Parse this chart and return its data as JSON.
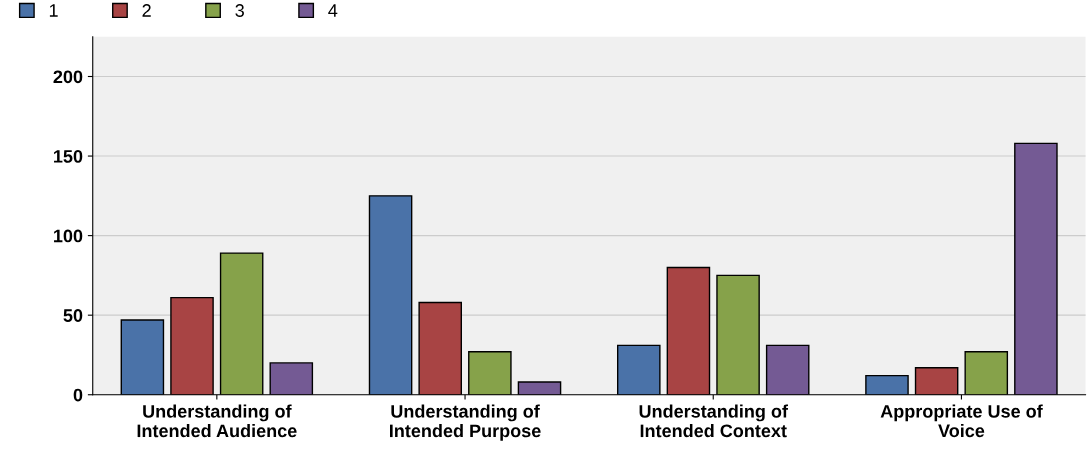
{
  "chart_data": {
    "type": "bar",
    "categories": [
      "Understanding of\nIntended Audience",
      "Understanding of\nIntended Purpose",
      "Understanding of\nIntended Context",
      "Appropriate Use of\nVoice"
    ],
    "series": [
      {
        "name": "1",
        "color": "#4a72a8",
        "values": [
          47,
          125,
          31,
          12
        ]
      },
      {
        "name": "2",
        "color": "#a84444",
        "values": [
          61,
          58,
          80,
          17
        ]
      },
      {
        "name": "3",
        "color": "#86a24a",
        "values": [
          89,
          27,
          75,
          27
        ]
      },
      {
        "name": "4",
        "color": "#745a94",
        "values": [
          20,
          8,
          31,
          158
        ]
      }
    ],
    "ylim": [
      0,
      225
    ],
    "yticks": [
      0,
      50,
      100,
      150,
      200
    ],
    "grid": "y",
    "legend": "top left"
  }
}
